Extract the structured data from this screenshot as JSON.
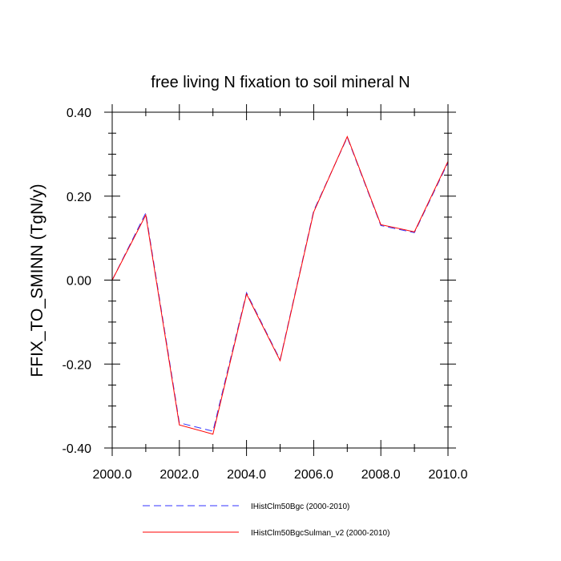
{
  "chart_data": {
    "type": "line",
    "title": "free living N fixation to soil mineral N",
    "xlabel": "",
    "ylabel": "FFIX_TO_SMINN  (TgN/y)",
    "xlim": [
      2000,
      2010
    ],
    "ylim": [
      -0.4,
      0.4
    ],
    "x_ticks": [
      2000,
      2002,
      2004,
      2006,
      2008,
      2010
    ],
    "x_tick_labels": [
      "2000.0",
      "2002.0",
      "2004.0",
      "2006.0",
      "2008.0",
      "2010.0"
    ],
    "y_ticks": [
      -0.4,
      -0.2,
      0.0,
      0.2,
      0.4
    ],
    "y_tick_labels": [
      "-0.40",
      "-0.20",
      "0.00",
      "0.20",
      "0.40"
    ],
    "grid": false,
    "legend_position": "bottom",
    "x": [
      2000,
      2001,
      2002,
      2003,
      2004,
      2005,
      2006,
      2007,
      2008,
      2009,
      2010
    ],
    "series": [
      {
        "name": "IHistClm50Bgc (2000-2010)",
        "color": "#3333ff",
        "dash": "dashed",
        "values": [
          0.0,
          0.16,
          -0.34,
          -0.36,
          -0.03,
          -0.19,
          0.165,
          0.34,
          0.13,
          0.113,
          0.28
        ]
      },
      {
        "name": "IHistClm50BgcSulman_v2 (2000-2010)",
        "color": "#ff0000",
        "dash": "solid",
        "values": [
          0.0,
          0.155,
          -0.345,
          -0.367,
          -0.033,
          -0.192,
          0.162,
          0.342,
          0.132,
          0.115,
          0.283
        ]
      }
    ]
  }
}
